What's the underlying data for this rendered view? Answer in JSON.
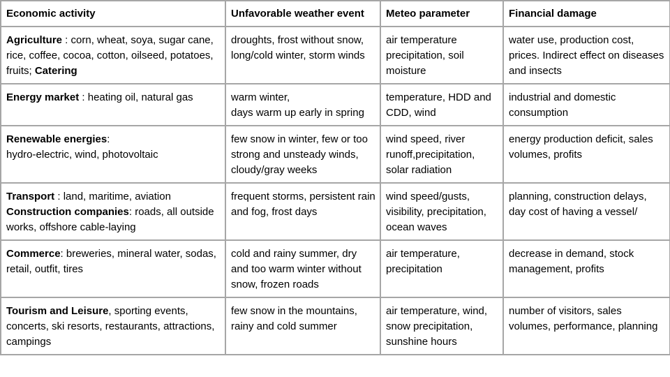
{
  "table": {
    "headers": [
      "Economic activity",
      "Unfavorable weather event",
      "Meteo parameter",
      "Financial damage"
    ],
    "rows": [
      {
        "sector": "Agriculture",
        "sector_detail": " : corn, wheat, soya, sugar cane, rice, coffee, cocoa, cotton, oilseed, potatoes, fruits; ",
        "sector2": "Catering",
        "weather_event": "droughts, frost without snow, long/cold winter, storm winds",
        "meteo_parameter": "air temperature precipitation, soil moisture",
        "financial_damage": "water use, production cost, prices. Indirect effect on diseases and insects"
      },
      {
        "sector": "Energy market",
        "sector_detail": " : heating oil, natural gas",
        "weather_event_line1": "warm winter,",
        "weather_event_line2": "days warm up early in spring",
        "meteo_parameter": "temperature, HDD and CDD, wind",
        "financial_damage": "industrial and domestic consumption"
      },
      {
        "sector": "Renewable energies",
        "sector_detail_line1": ":",
        "sector_detail_line2": "hydro-electric, wind, photovoltaic",
        "weather_event": "few snow in winter, few or too strong and unsteady winds, cloudy/gray weeks",
        "meteo_parameter": "wind speed, river runoff,precipitation, solar radiation",
        "financial_damage": "energy production deficit, sales volumes, profits"
      },
      {
        "sector": "Transport",
        "sector_detail": " : land, maritime, aviation",
        "sector2": "Construction companies",
        "sector2_detail": ": roads, all outside works, offshore cable-laying",
        "weather_event": "frequent storms, persistent rain and fog, frost days",
        "meteo_parameter": "wind speed/gusts, visibility, precipitation, ocean waves",
        "financial_damage": "planning, construction delays, day cost of having a vessel/"
      },
      {
        "sector": "Commerce",
        "sector_detail": ": breweries, mineral water, sodas, retail, outfit, tires",
        "weather_event": "cold and rainy summer, dry and too warm winter without snow, frozen roads",
        "meteo_parameter": "air temperature, precipitation",
        "financial_damage": "decrease in demand, stock management, profits"
      },
      {
        "sector": "Tourism and Leisure",
        "sector_detail": ", sporting events, concerts, ski resorts, restaurants, attractions, campings",
        "weather_event": "few snow in the mountains, rainy and cold summer",
        "meteo_parameter": "air temperature, wind, snow precipitation, sunshine hours",
        "financial_damage": "number of visitors, sales volumes, performance, planning"
      }
    ]
  }
}
